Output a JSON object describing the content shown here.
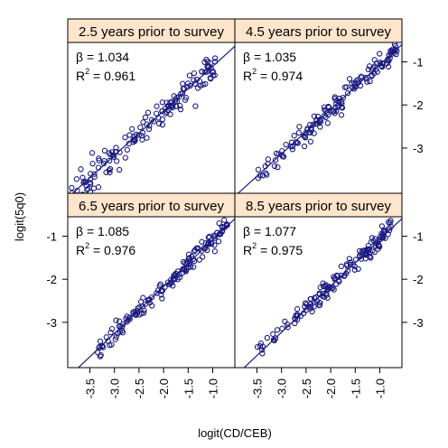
{
  "colors": {
    "points": "#1a1a80",
    "fit_line": "#1a1a80",
    "strip_bg": "#ffe5cc",
    "frame": "#000000"
  },
  "chart_data": {
    "type": "scatter",
    "layout": "2x2 lattice",
    "xlabel": "logit(CD/CEB)",
    "ylabel": "logit(5q0)",
    "xlim": [
      -3.95,
      -0.55
    ],
    "ylim": [
      -4.05,
      -0.55
    ],
    "x_ticks": [
      -3.5,
      -3.0,
      -2.5,
      -2.0,
      -1.5,
      -1.0
    ],
    "x_tick_labels": [
      "-3.5",
      "-3.0",
      "-2.5",
      "-2.0",
      "-1.5",
      "-1.0"
    ],
    "y_ticks": [
      -1,
      -2,
      -3
    ],
    "y_tick_labels": [
      "-1",
      "-2",
      "-3"
    ],
    "y_tick_side": {
      "top_row": "right",
      "bottom_row": "left_for_bottom_left_right_for_bottom_right"
    },
    "panels": [
      {
        "strip": "2.5 years prior to survey",
        "beta_symbol": "β",
        "r2_symbol": "R",
        "r2_exp": "2",
        "eq": "=",
        "beta": "1.034",
        "r2": "0.961",
        "fit": {
          "slope": 1.034,
          "intercept": -0.07
        },
        "x_range": [
          -3.9,
          -0.95
        ],
        "noise": 0.16
      },
      {
        "strip": "4.5 years prior to survey",
        "beta_symbol": "β",
        "r2_symbol": "R",
        "r2_exp": "2",
        "eq": "=",
        "beta": "1.035",
        "r2": "0.974",
        "fit": {
          "slope": 1.035,
          "intercept": -0.03
        },
        "x_range": [
          -3.5,
          -0.65
        ],
        "noise": 0.12
      },
      {
        "strip": "6.5 years prior to survey",
        "beta_symbol": "β",
        "r2_symbol": "R",
        "r2_exp": "2",
        "eq": "=",
        "beta": "1.085",
        "r2": "0.976",
        "fit": {
          "slope": 1.085,
          "intercept": 0.0
        },
        "x_range": [
          -3.5,
          -0.7
        ],
        "noise": 0.11
      },
      {
        "strip": "8.5 years prior to survey",
        "beta_symbol": "β",
        "r2_symbol": "R",
        "r2_exp": "2",
        "eq": "=",
        "beta": "1.077",
        "r2": "0.975",
        "fit": {
          "slope": 1.077,
          "intercept": 0.0
        },
        "x_range": [
          -3.5,
          -0.75
        ],
        "noise": 0.11
      }
    ]
  }
}
